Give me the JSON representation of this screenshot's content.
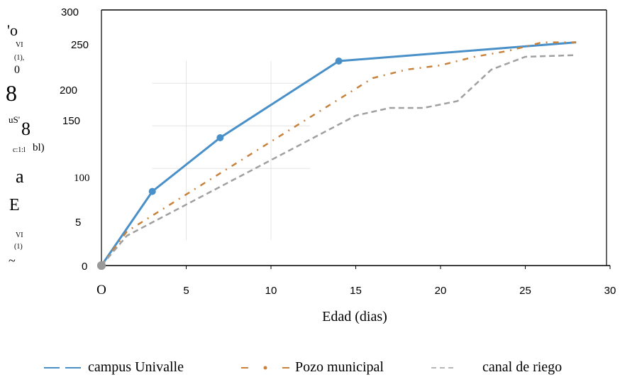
{
  "chart_data": {
    "type": "line",
    "xlabel": "Edad (dias)",
    "ylabel_fragments": [
      "'o",
      "VI",
      "(1),",
      "0",
      "8",
      "uS'",
      "8",
      "c:1:l",
      "bl)",
      "a",
      "E",
      "VI",
      "(1)",
      "~"
    ],
    "xlim": [
      0,
      30
    ],
    "ylim": [
      0,
      300
    ],
    "x_ticks": [
      "O",
      "5",
      "10",
      "15",
      "20",
      "25",
      "30"
    ],
    "y_ticks": [
      "0",
      "5",
      "100",
      "150",
      "200",
      "250",
      "300"
    ],
    "grid": true,
    "legend_placement": "bottom",
    "series": [
      {
        "name": "campus Univalle",
        "color": "#4a90c8",
        "style": "solid",
        "points": [
          [
            0,
            0
          ],
          [
            3,
            87
          ],
          [
            7,
            150
          ],
          [
            14,
            240
          ],
          [
            28,
            262
          ]
        ]
      },
      {
        "name": "Pozo municipal",
        "color": "#c8823c",
        "style": "dash-dot",
        "points": [
          [
            0,
            0
          ],
          [
            1.5,
            40
          ],
          [
            16,
            220
          ],
          [
            18,
            230
          ],
          [
            20,
            235
          ],
          [
            22,
            245
          ],
          [
            24,
            252
          ],
          [
            26,
            262
          ],
          [
            28,
            262
          ]
        ]
      },
      {
        "name": "canal de riego",
        "color": "#a0a0a0",
        "style": "dashed",
        "points": [
          [
            0,
            0
          ],
          [
            1.5,
            35
          ],
          [
            15,
            176
          ],
          [
            17,
            185
          ],
          [
            19,
            185
          ],
          [
            21,
            193
          ],
          [
            23,
            230
          ],
          [
            25,
            245
          ],
          [
            28,
            247
          ]
        ]
      }
    ]
  },
  "legend": [
    {
      "label": "campus Univalle",
      "color": "#4a90c8",
      "style": "solid"
    },
    {
      "label": "Pozo municipal",
      "color": "#c8823c",
      "style": "dash-dot"
    },
    {
      "label": "canal de riego",
      "color": "#a0a0a0",
      "style": "dashed"
    }
  ]
}
